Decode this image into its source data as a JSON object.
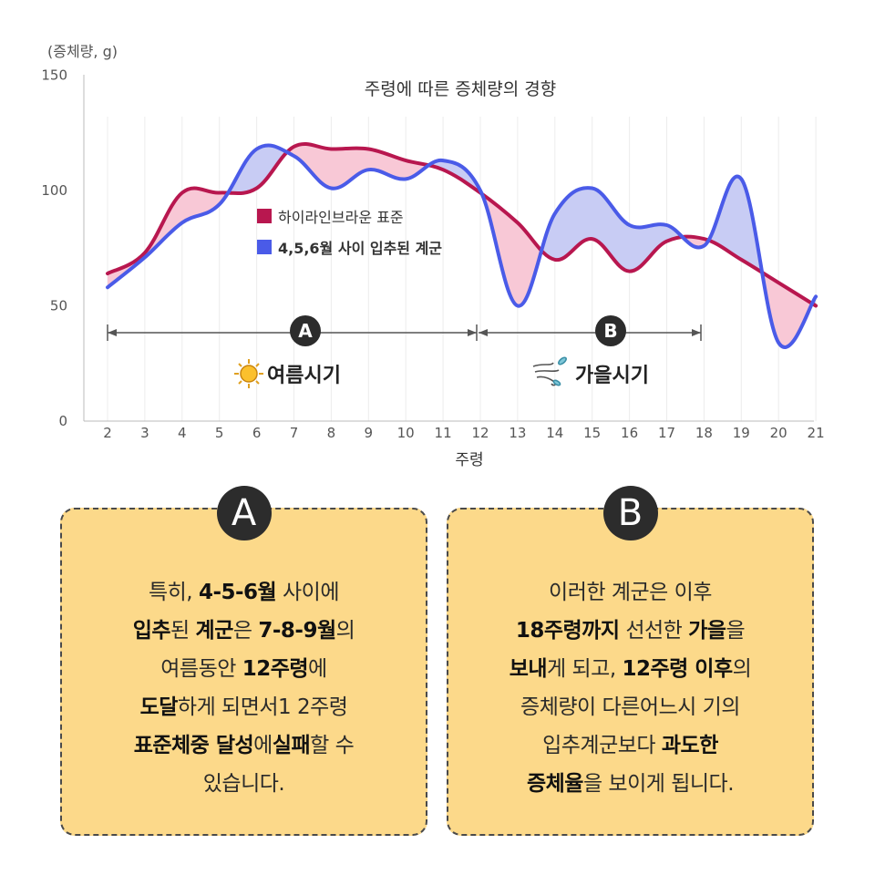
{
  "chart_data": {
    "type": "line",
    "title": "주령에 따른 증체량의 경향",
    "ylabel": "(증체량, g)",
    "xlabel": "주령",
    "ylim": [
      0,
      150
    ],
    "yticks": [
      0,
      50,
      100,
      150
    ],
    "categories": [
      2,
      3,
      4,
      5,
      6,
      7,
      8,
      9,
      10,
      11,
      12,
      13,
      14,
      15,
      16,
      17,
      18,
      19,
      20,
      21
    ],
    "series": [
      {
        "name": "하이라인브라운 표준",
        "color": "#b8174f",
        "x": [
          2,
          3,
          4,
          5,
          6,
          7,
          8,
          9,
          10,
          11,
          12,
          13,
          14,
          15,
          16,
          17,
          18,
          19,
          20,
          21
        ],
        "values": [
          64,
          73,
          99,
          99,
          101,
          119,
          118,
          118,
          113,
          109,
          99,
          86,
          70,
          79,
          65,
          78,
          79,
          70,
          60,
          50
        ]
      },
      {
        "name": "4,5,6월 사이 입추된 계군",
        "color": "#4a5be8",
        "x": [
          2,
          3,
          4,
          5,
          6,
          7,
          8,
          9,
          10,
          11,
          12,
          13,
          14,
          15,
          16,
          17,
          18,
          19,
          20,
          21
        ],
        "values": [
          58,
          71,
          86,
          94,
          118,
          115,
          101,
          109,
          105,
          113,
          100,
          50,
          90,
          101,
          85,
          85,
          76,
          105,
          34,
          54
        ]
      }
    ],
    "fill_colors": {
      "standard_above": "#f8c8d6",
      "flock_above": "#c8ccf4"
    },
    "legend": [
      "하이라인브라운 표준",
      "4,5,6월 사이 입추된 계군"
    ]
  },
  "periods": [
    {
      "badge": "A",
      "label": "여름시기",
      "icon": "sun-icon",
      "from_week": 2,
      "to_week": 12
    },
    {
      "badge": "B",
      "label": "가을시기",
      "icon": "wind-leaf-icon",
      "from_week": 12,
      "to_week": 18
    }
  ],
  "cards": {
    "a": {
      "badge": "A",
      "lines": [
        [
          {
            "t": "특히, "
          },
          {
            "t": "4-5-6월",
            "b": true
          },
          {
            "t": " 사이에"
          }
        ],
        [
          {
            "t": "입추",
            "b": true
          },
          {
            "t": "된 "
          },
          {
            "t": "계군",
            "b": true
          },
          {
            "t": "은 "
          },
          {
            "t": "7-8-9월",
            "b": true
          },
          {
            "t": "의"
          }
        ],
        [
          {
            "t": "여름동안 "
          },
          {
            "t": "12주령",
            "b": true
          },
          {
            "t": "에"
          }
        ],
        [
          {
            "t": "도달",
            "b": true
          },
          {
            "t": "하게 되면서1 2주령"
          }
        ],
        [
          {
            "t": "표준체중 달성",
            "b": true
          },
          {
            "t": "에"
          },
          {
            "t": "실패",
            "b": true
          },
          {
            "t": "할 수"
          }
        ],
        [
          {
            "t": "있습니다."
          }
        ]
      ]
    },
    "b": {
      "badge": "B",
      "lines": [
        [
          {
            "t": "이러한 계군은 이후"
          }
        ],
        [
          {
            "t": "18주령까지",
            "b": true
          },
          {
            "t": " 선선한 "
          },
          {
            "t": "가을",
            "b": true
          },
          {
            "t": "을"
          }
        ],
        [
          {
            "t": "보내",
            "b": true
          },
          {
            "t": "게 되고, "
          },
          {
            "t": "12주령 이후",
            "b": true
          },
          {
            "t": "의"
          }
        ],
        [
          {
            "t": "증체량이 다른어느시 기의"
          }
        ],
        [
          {
            "t": "입추계군보다 "
          },
          {
            "t": "과도한",
            "b": true
          }
        ],
        [
          {
            "t": "증체율",
            "b": true
          },
          {
            "t": "을 보이게 됩니다."
          }
        ]
      ]
    }
  }
}
